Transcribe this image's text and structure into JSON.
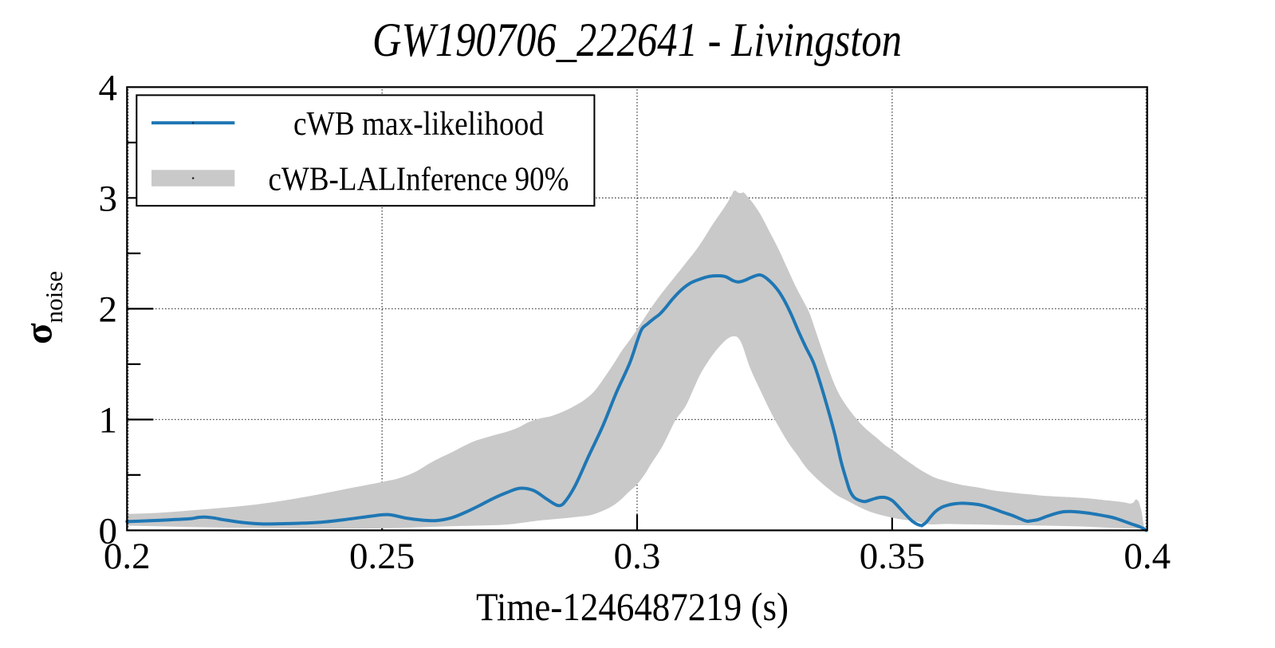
{
  "chart_data": {
    "type": "line",
    "title": "GW190706_222641 - Livingston",
    "xlabel": "Time-1246487219 (s)",
    "ylabel_base": "σ",
    "ylabel_sub": "noise",
    "xlim": [
      0.2,
      0.4
    ],
    "ylim": [
      0,
      4
    ],
    "x_ticks": [
      {
        "v": 0.2,
        "label": "0.2"
      },
      {
        "v": 0.25,
        "label": "0.25"
      },
      {
        "v": 0.3,
        "label": "0.3"
      },
      {
        "v": 0.35,
        "label": "0.35"
      },
      {
        "v": 0.4,
        "label": "0.4"
      }
    ],
    "y_ticks": [
      {
        "v": 0,
        "label": "0"
      },
      {
        "v": 1,
        "label": "1"
      },
      {
        "v": 2,
        "label": "2"
      },
      {
        "v": 3,
        "label": "3"
      },
      {
        "v": 4,
        "label": "4"
      }
    ],
    "y_minor_ticks": [
      0.5,
      1.5,
      2.5,
      3.5
    ],
    "grid": {
      "style": "dotted",
      "x_at": [
        0.2,
        0.25,
        0.3,
        0.35,
        0.4
      ],
      "y_at": [
        1,
        2,
        3
      ]
    },
    "legend_position": "top-left",
    "colors": {
      "line": "#1f77b4",
      "band": "#c9c9c9",
      "frame": "#000000",
      "grid": "#000000",
      "legend_border": "#000000",
      "background": "#ffffff"
    },
    "series": [
      {
        "name": "cWB max-likelihood",
        "type": "line",
        "color": "#1f77b4",
        "points": [
          [
            0.2,
            0.079
          ],
          [
            0.2032,
            0.085
          ],
          [
            0.2062,
            0.09
          ],
          [
            0.2095,
            0.098
          ],
          [
            0.2125,
            0.105
          ],
          [
            0.214,
            0.117
          ],
          [
            0.2153,
            0.12
          ],
          [
            0.217,
            0.112
          ],
          [
            0.2189,
            0.096
          ],
          [
            0.2228,
            0.07
          ],
          [
            0.2267,
            0.058
          ],
          [
            0.2314,
            0.061
          ],
          [
            0.2376,
            0.072
          ],
          [
            0.2439,
            0.104
          ],
          [
            0.2478,
            0.128
          ],
          [
            0.2512,
            0.142
          ],
          [
            0.2548,
            0.11
          ],
          [
            0.258,
            0.092
          ],
          [
            0.2606,
            0.088
          ],
          [
            0.2636,
            0.113
          ],
          [
            0.2663,
            0.162
          ],
          [
            0.2691,
            0.224
          ],
          [
            0.2717,
            0.286
          ],
          [
            0.2744,
            0.34
          ],
          [
            0.277,
            0.38
          ],
          [
            0.2797,
            0.36
          ],
          [
            0.2822,
            0.285
          ],
          [
            0.2844,
            0.225
          ],
          [
            0.2856,
            0.244
          ],
          [
            0.2878,
            0.398
          ],
          [
            0.2905,
            0.67
          ],
          [
            0.2933,
            0.945
          ],
          [
            0.2959,
            1.24
          ],
          [
            0.2986,
            1.515
          ],
          [
            0.3008,
            1.805
          ],
          [
            0.302,
            1.862
          ],
          [
            0.3032,
            1.908
          ],
          [
            0.3044,
            1.95
          ],
          [
            0.3056,
            2.01
          ],
          [
            0.3069,
            2.085
          ],
          [
            0.3088,
            2.175
          ],
          [
            0.3106,
            2.235
          ],
          [
            0.3125,
            2.27
          ],
          [
            0.3142,
            2.292
          ],
          [
            0.3161,
            2.297
          ],
          [
            0.3174,
            2.288
          ],
          [
            0.3189,
            2.252
          ],
          [
            0.3199,
            2.242
          ],
          [
            0.3211,
            2.256
          ],
          [
            0.3226,
            2.287
          ],
          [
            0.3241,
            2.305
          ],
          [
            0.3255,
            2.27
          ],
          [
            0.3274,
            2.18
          ],
          [
            0.3288,
            2.08
          ],
          [
            0.3302,
            1.95
          ],
          [
            0.3316,
            1.8
          ],
          [
            0.333,
            1.66
          ],
          [
            0.3346,
            1.51
          ],
          [
            0.3361,
            1.3
          ],
          [
            0.3375,
            1.08
          ],
          [
            0.3388,
            0.86
          ],
          [
            0.34,
            0.62
          ],
          [
            0.341,
            0.46
          ],
          [
            0.3417,
            0.36
          ],
          [
            0.3425,
            0.3
          ],
          [
            0.3435,
            0.272
          ],
          [
            0.3446,
            0.26
          ],
          [
            0.3456,
            0.272
          ],
          [
            0.3466,
            0.287
          ],
          [
            0.3477,
            0.298
          ],
          [
            0.3489,
            0.294
          ],
          [
            0.35,
            0.27
          ],
          [
            0.3511,
            0.22
          ],
          [
            0.3525,
            0.15
          ],
          [
            0.3539,
            0.085
          ],
          [
            0.3549,
            0.055
          ],
          [
            0.3558,
            0.042
          ],
          [
            0.3558,
            0.042
          ],
          [
            0.3565,
            0.065
          ],
          [
            0.357,
            0.09
          ],
          [
            0.3575,
            0.12
          ],
          [
            0.3585,
            0.17
          ],
          [
            0.3597,
            0.208
          ],
          [
            0.3609,
            0.227
          ],
          [
            0.3623,
            0.24
          ],
          [
            0.3637,
            0.245
          ],
          [
            0.3653,
            0.241
          ],
          [
            0.367,
            0.232
          ],
          [
            0.3687,
            0.212
          ],
          [
            0.3703,
            0.187
          ],
          [
            0.3719,
            0.16
          ],
          [
            0.3736,
            0.134
          ],
          [
            0.3751,
            0.105
          ],
          [
            0.3764,
            0.083
          ],
          [
            0.3775,
            0.088
          ],
          [
            0.3786,
            0.097
          ],
          [
            0.3803,
            0.126
          ],
          [
            0.3819,
            0.15
          ],
          [
            0.3836,
            0.168
          ],
          [
            0.3851,
            0.17
          ],
          [
            0.3869,
            0.164
          ],
          [
            0.3886,
            0.155
          ],
          [
            0.3903,
            0.142
          ],
          [
            0.3921,
            0.127
          ],
          [
            0.3936,
            0.111
          ],
          [
            0.3953,
            0.085
          ],
          [
            0.3969,
            0.058
          ],
          [
            0.3985,
            0.033
          ],
          [
            0.3993,
            0.015
          ],
          [
            0.3998,
            0.0
          ]
        ]
      },
      {
        "name": "cWB-LALInference 90%",
        "type": "band",
        "color": "#c9c9c9",
        "upper": [
          [
            0.2,
            0.147
          ],
          [
            0.2062,
            0.158
          ],
          [
            0.2125,
            0.18
          ],
          [
            0.2189,
            0.204
          ],
          [
            0.2251,
            0.232
          ],
          [
            0.2314,
            0.274
          ],
          [
            0.2376,
            0.325
          ],
          [
            0.2439,
            0.382
          ],
          [
            0.2501,
            0.437
          ],
          [
            0.2533,
            0.47
          ],
          [
            0.2564,
            0.525
          ],
          [
            0.2595,
            0.61
          ],
          [
            0.2617,
            0.662
          ],
          [
            0.2639,
            0.71
          ],
          [
            0.2659,
            0.758
          ],
          [
            0.2681,
            0.805
          ],
          [
            0.2703,
            0.836
          ],
          [
            0.2723,
            0.863
          ],
          [
            0.2745,
            0.89
          ],
          [
            0.2767,
            0.928
          ],
          [
            0.2789,
            0.98
          ],
          [
            0.2811,
            1.012
          ],
          [
            0.2831,
            1.03
          ],
          [
            0.2853,
            1.068
          ],
          [
            0.2875,
            1.117
          ],
          [
            0.2897,
            1.178
          ],
          [
            0.2917,
            1.26
          ],
          [
            0.2936,
            1.38
          ],
          [
            0.2955,
            1.51
          ],
          [
            0.297,
            1.62
          ],
          [
            0.2986,
            1.72
          ],
          [
            0.3002,
            1.83
          ],
          [
            0.3017,
            1.935
          ],
          [
            0.3033,
            2.045
          ],
          [
            0.305,
            2.15
          ],
          [
            0.3069,
            2.26
          ],
          [
            0.3083,
            2.34
          ],
          [
            0.3095,
            2.41
          ],
          [
            0.3114,
            2.52
          ],
          [
            0.3131,
            2.635
          ],
          [
            0.3148,
            2.76
          ],
          [
            0.3166,
            2.88
          ],
          [
            0.3178,
            2.965
          ],
          [
            0.3186,
            3.03
          ],
          [
            0.3189,
            3.06
          ],
          [
            0.3193,
            3.066
          ],
          [
            0.3198,
            3.047
          ],
          [
            0.3204,
            3.044
          ],
          [
            0.3209,
            3.049
          ],
          [
            0.3217,
            3.008
          ],
          [
            0.3226,
            2.96
          ],
          [
            0.3242,
            2.85
          ],
          [
            0.3259,
            2.7
          ],
          [
            0.3277,
            2.54
          ],
          [
            0.3294,
            2.37
          ],
          [
            0.3311,
            2.2
          ],
          [
            0.3327,
            2.06
          ],
          [
            0.3338,
            1.96
          ],
          [
            0.335,
            1.8
          ],
          [
            0.3361,
            1.65
          ],
          [
            0.3374,
            1.475
          ],
          [
            0.3385,
            1.34
          ],
          [
            0.3396,
            1.23
          ],
          [
            0.3408,
            1.14
          ],
          [
            0.3424,
            1.04
          ],
          [
            0.3439,
            0.96
          ],
          [
            0.3455,
            0.89
          ],
          [
            0.3471,
            0.83
          ],
          [
            0.3486,
            0.77
          ],
          [
            0.3504,
            0.715
          ],
          [
            0.3521,
            0.655
          ],
          [
            0.3538,
            0.6
          ],
          [
            0.3553,
            0.553
          ],
          [
            0.3571,
            0.505
          ],
          [
            0.3586,
            0.472
          ],
          [
            0.3603,
            0.448
          ],
          [
            0.3621,
            0.426
          ],
          [
            0.3636,
            0.41
          ],
          [
            0.3653,
            0.398
          ],
          [
            0.367,
            0.386
          ],
          [
            0.3686,
            0.371
          ],
          [
            0.3703,
            0.357
          ],
          [
            0.3719,
            0.349
          ],
          [
            0.3736,
            0.34
          ],
          [
            0.3754,
            0.331
          ],
          [
            0.3769,
            0.325
          ],
          [
            0.3786,
            0.317
          ],
          [
            0.3803,
            0.31
          ],
          [
            0.3819,
            0.306
          ],
          [
            0.3836,
            0.302
          ],
          [
            0.3851,
            0.299
          ],
          [
            0.3869,
            0.294
          ],
          [
            0.3886,
            0.288
          ],
          [
            0.3903,
            0.28
          ],
          [
            0.3918,
            0.272
          ],
          [
            0.3936,
            0.264
          ],
          [
            0.3945,
            0.259
          ],
          [
            0.3956,
            0.252
          ],
          [
            0.3967,
            0.242
          ],
          [
            0.3973,
            0.252
          ],
          [
            0.3978,
            0.28
          ],
          [
            0.3983,
            0.262
          ],
          [
            0.3986,
            0.22
          ],
          [
            0.3989,
            0.17
          ],
          [
            0.3992,
            0.08
          ],
          [
            0.3994,
            0.03
          ]
        ],
        "lower": [
          [
            0.2,
            0.042
          ],
          [
            0.2126,
            0.03
          ],
          [
            0.2251,
            0.022
          ],
          [
            0.2376,
            0.016
          ],
          [
            0.2501,
            0.018
          ],
          [
            0.2564,
            0.026
          ],
          [
            0.2626,
            0.036
          ],
          [
            0.2684,
            0.042
          ],
          [
            0.2744,
            0.052
          ],
          [
            0.2801,
            0.085
          ],
          [
            0.283,
            0.098
          ],
          [
            0.2861,
            0.111
          ],
          [
            0.2891,
            0.126
          ],
          [
            0.2906,
            0.135
          ],
          [
            0.2922,
            0.157
          ],
          [
            0.2937,
            0.185
          ],
          [
            0.2953,
            0.224
          ],
          [
            0.2968,
            0.277
          ],
          [
            0.2983,
            0.344
          ],
          [
            0.3,
            0.415
          ],
          [
            0.3017,
            0.52
          ],
          [
            0.3026,
            0.59
          ],
          [
            0.3039,
            0.68
          ],
          [
            0.3051,
            0.77
          ],
          [
            0.3065,
            0.9
          ],
          [
            0.3076,
            1.0
          ],
          [
            0.3095,
            1.12
          ],
          [
            0.311,
            1.27
          ],
          [
            0.3124,
            1.41
          ],
          [
            0.314,
            1.53
          ],
          [
            0.3156,
            1.63
          ],
          [
            0.3171,
            1.705
          ],
          [
            0.318,
            1.737
          ],
          [
            0.3188,
            1.751
          ],
          [
            0.3196,
            1.745
          ],
          [
            0.3205,
            1.685
          ],
          [
            0.3222,
            1.46
          ],
          [
            0.3244,
            1.24
          ],
          [
            0.3264,
            1.05
          ],
          [
            0.3284,
            0.885
          ],
          [
            0.3298,
            0.78
          ],
          [
            0.3314,
            0.68
          ],
          [
            0.333,
            0.575
          ],
          [
            0.3345,
            0.5
          ],
          [
            0.3361,
            0.43
          ],
          [
            0.3378,
            0.365
          ],
          [
            0.3394,
            0.31
          ],
          [
            0.3411,
            0.27
          ],
          [
            0.3427,
            0.23
          ],
          [
            0.3444,
            0.193
          ],
          [
            0.346,
            0.163
          ],
          [
            0.3477,
            0.14
          ],
          [
            0.3493,
            0.122
          ],
          [
            0.3509,
            0.106
          ],
          [
            0.3525,
            0.095
          ],
          [
            0.3537,
            0.089
          ],
          [
            0.3552,
            0.075
          ],
          [
            0.356,
            0.065
          ],
          [
            0.3576,
            0.053
          ],
          [
            0.3604,
            0.058
          ],
          [
            0.3637,
            0.055
          ],
          [
            0.367,
            0.053
          ],
          [
            0.3704,
            0.05
          ],
          [
            0.3736,
            0.047
          ],
          [
            0.377,
            0.045
          ],
          [
            0.3803,
            0.042
          ],
          [
            0.3836,
            0.039
          ],
          [
            0.387,
            0.035
          ],
          [
            0.3903,
            0.029
          ],
          [
            0.3936,
            0.022
          ],
          [
            0.3969,
            0.018
          ],
          [
            0.3989,
            0.017
          ],
          [
            0.3994,
            0.03
          ]
        ]
      }
    ]
  }
}
